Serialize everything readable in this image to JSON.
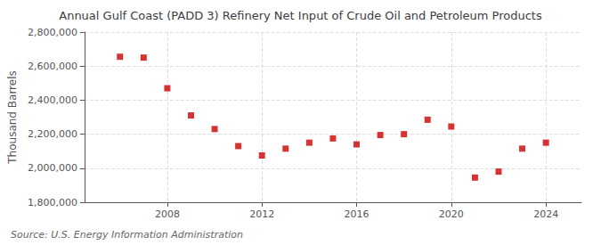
{
  "chart_data": {
    "type": "scatter",
    "title": "Annual Gulf Coast (PADD 3) Refinery Net Input of Crude Oil and Petroleum Products",
    "ylabel": "Thousand Barrels",
    "annotation": "Source: U.S. Energy Information Administration",
    "x": [
      2006,
      2007,
      2008,
      2009,
      2010,
      2011,
      2012,
      2013,
      2014,
      2015,
      2016,
      2017,
      2018,
      2019,
      2020,
      2021,
      2022,
      2023,
      2024
    ],
    "values": [
      2655000,
      2650000,
      2470000,
      2310000,
      2230000,
      2130000,
      2075000,
      2115000,
      2150000,
      2175000,
      2140000,
      2195000,
      2200000,
      2285000,
      2245000,
      1945000,
      1980000,
      2115000,
      2150000
    ],
    "color": "#cc0000",
    "marker": "square",
    "xlim": [
      2004.5,
      2025.5
    ],
    "xticks": [
      2008,
      2012,
      2016,
      2020,
      2024
    ],
    "ylim": [
      1800000,
      2800000
    ],
    "yticks": [
      {
        "value": 1800000,
        "label": "1,800,000"
      },
      {
        "value": 2000000,
        "label": "2,000,000"
      },
      {
        "value": 2200000,
        "label": "2,200,000"
      },
      {
        "value": 2400000,
        "label": "2,400,000"
      },
      {
        "value": 2600000,
        "label": "2,600,000"
      },
      {
        "value": 2800000,
        "label": "2,800,000"
      }
    ],
    "grid": true
  }
}
